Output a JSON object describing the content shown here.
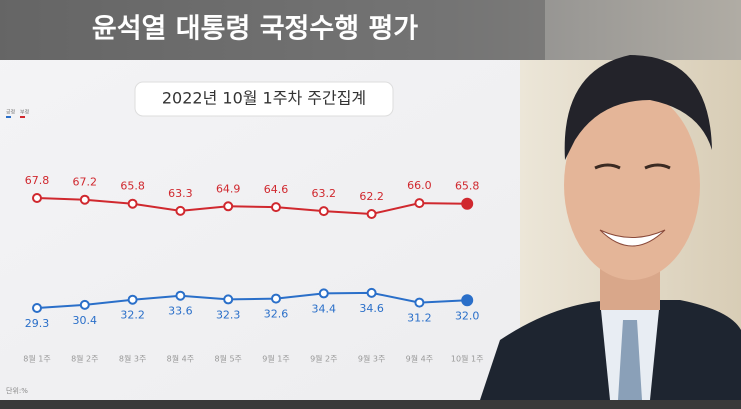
{
  "chart_data": {
    "type": "line",
    "title": "윤석열 대통령 국정수행 평가",
    "subtitle": "2022년 10월 1주차 주간집계",
    "unit_note": "단위:%",
    "categories": [
      "8월 1주",
      "8월 2주",
      "8월 3주",
      "8월 4주",
      "8월 5주",
      "9월 1주",
      "9월 2주",
      "9월 3주",
      "9월 4주",
      "10월 1주"
    ],
    "series": [
      {
        "name": "긍정",
        "color": "#2a6fc9",
        "values": [
          29.3,
          30.4,
          32.2,
          33.6,
          32.3,
          32.6,
          34.4,
          34.6,
          31.2,
          32.0
        ],
        "value_labels": [
          "29.3",
          "30.4",
          "32.2",
          "33.6",
          "32.3",
          "32.6",
          "34.4",
          "34.6",
          "31.2",
          "32.0"
        ]
      },
      {
        "name": "부정",
        "color": "#d0282e",
        "values": [
          67.8,
          67.2,
          65.8,
          63.3,
          64.9,
          64.6,
          63.2,
          62.2,
          66.0,
          65.8
        ],
        "value_labels": [
          "67.8",
          "67.2",
          "65.8",
          "63.3",
          "64.9",
          "64.6",
          "63.2",
          "62.2",
          "66.0",
          "65.8"
        ]
      }
    ]
  }
}
